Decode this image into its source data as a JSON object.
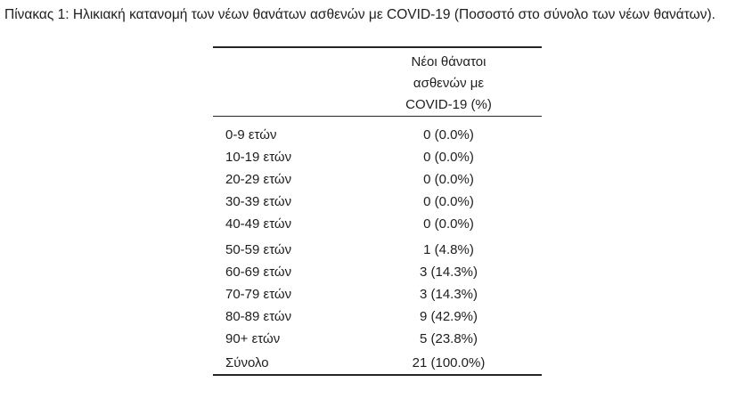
{
  "page": {
    "background": "#ffffff",
    "text_color": "#1e1e1e",
    "title": "Πίνακας 1: Ηλικιακή κατανομή των νέων θανάτων ασθενών με COVID-19 (Ποσοστό στο σύνολο των νέων θανάτων)."
  },
  "table": {
    "value_column_header": "Νέοι θάνατοι ασθενών με COVID-19 (%)",
    "header_lines": [
      "Νέοι θάνατοι",
      "ασθενών με",
      "COVID-19 (%)"
    ],
    "groups": [
      {
        "rows": [
          {
            "label": "0-9 ετών",
            "value": "0 (0.0%)"
          },
          {
            "label": "10-19 ετών",
            "value": "0 (0.0%)"
          },
          {
            "label": "20-29 ετών",
            "value": "0 (0.0%)"
          },
          {
            "label": "30-39 ετών",
            "value": "0 (0.0%)"
          },
          {
            "label": "40-49 ετών",
            "value": "0 (0.0%)"
          }
        ]
      },
      {
        "rows": [
          {
            "label": "50-59 ετών",
            "value": "1 (4.8%)"
          },
          {
            "label": "60-69 ετών",
            "value": "3 (14.3%)"
          },
          {
            "label": "70-79 ετών",
            "value": "3 (14.3%)"
          },
          {
            "label": "80-89 ετών",
            "value": "9 (42.9%)"
          },
          {
            "label": "90+ ετών",
            "value": "5 (23.8%)"
          }
        ]
      }
    ],
    "total_row": {
      "label": "Σύνολο",
      "value": "21 (100.0%)"
    }
  },
  "chart_data": {
    "type": "table",
    "title": "Πίνακας 1: Ηλικιακή κατανομή των νέων θανάτων ασθενών με COVID-19 (Ποσοστό στο σύνολο των νέων θανάτων).",
    "columns": [
      "",
      "Νέοι θάνατοι ασθενών με COVID-19 (%)"
    ],
    "categories": [
      "0-9 ετών",
      "10-19 ετών",
      "20-29 ετών",
      "30-39 ετών",
      "40-49 ετών",
      "50-59 ετών",
      "60-69 ετών",
      "70-79 ετών",
      "80-89 ετών",
      "90+ ετών"
    ],
    "deaths": [
      0,
      0,
      0,
      0,
      0,
      1,
      3,
      3,
      9,
      5
    ],
    "percentages": [
      0.0,
      0.0,
      0.0,
      0.0,
      0.0,
      4.8,
      14.3,
      14.3,
      42.9,
      23.8
    ],
    "total_label": "Σύνολο",
    "total_deaths": 21,
    "total_percentage": 100.0
  }
}
